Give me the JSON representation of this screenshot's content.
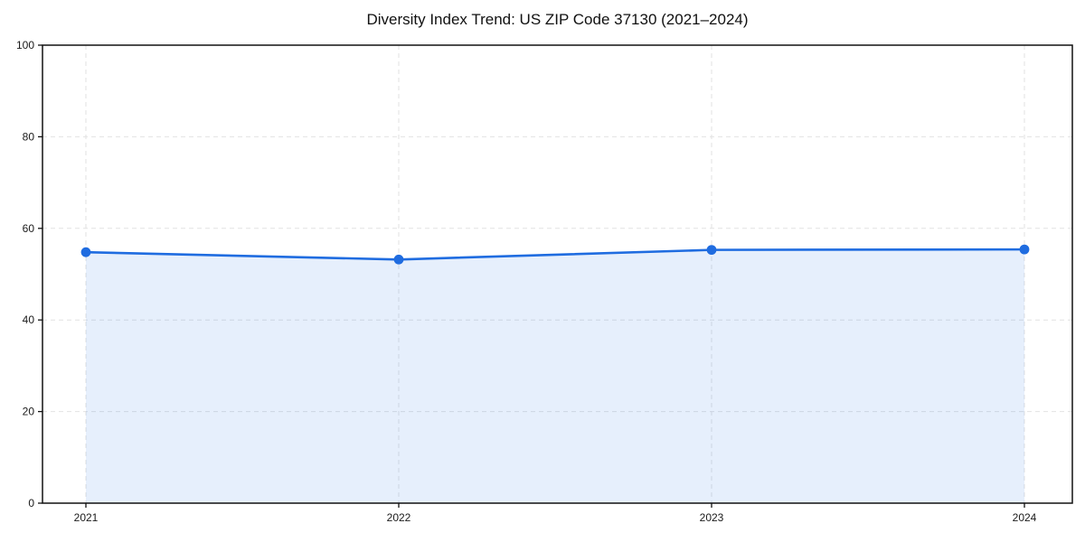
{
  "page": {
    "background": "#ffffff"
  },
  "chart_data": {
    "type": "area",
    "title": "Diversity Index Trend: US ZIP Code 37130 (2021–2024)",
    "xlabel": "",
    "ylabel": "",
    "x": [
      "2021",
      "2022",
      "2023",
      "2024"
    ],
    "series": [
      {
        "name": "Diversity Index",
        "values": [
          54.8,
          53.2,
          55.3,
          55.4
        ]
      }
    ],
    "ylim": [
      0,
      100
    ],
    "yticks": [
      0,
      20,
      40,
      60,
      80,
      100
    ],
    "grid": true,
    "grid_style": "dashed",
    "legend": false,
    "marker": "circle",
    "colors": {
      "line": "#1f6ce0",
      "marker": "#1f6ce0",
      "fill": "rgba(31,108,224,0.11)",
      "grid": "#e2e2e2",
      "axis": "#111111",
      "tick_text": "#1a1a1a"
    }
  }
}
